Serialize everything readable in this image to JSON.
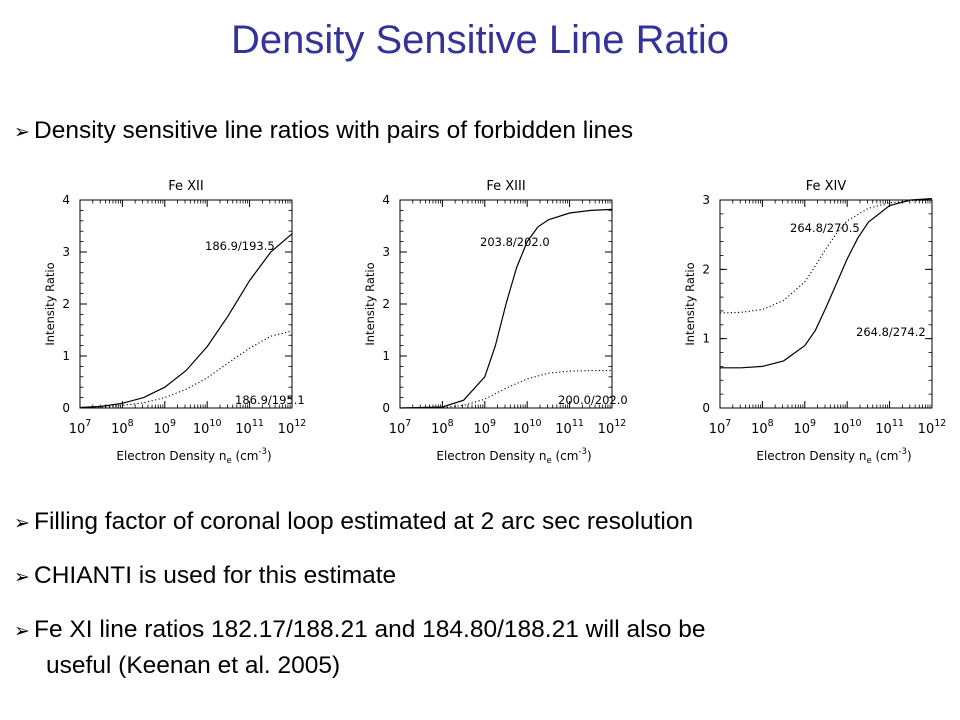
{
  "slide": {
    "title": "Density Sensitive Line Ratio",
    "bullets": [
      "Density sensitive line ratios with pairs of forbidden lines",
      "Filling factor of coronal loop estimated at 2 arc sec resolution",
      "CHIANTI is used for this estimate",
      "Fe XI line ratios 182.17/188.21 and 184.80/188.21 will also be"
    ],
    "bullet_continuation": "useful (Keenan et al. 2005)",
    "bullet_icon": "arrow-bullet-icon"
  },
  "chart_data": [
    {
      "type": "line",
      "title": "Fe XII",
      "xlabel": "Electron Density",
      "ylabel": "Intensity Ratio",
      "xscale": "log",
      "xlim": [
        7,
        12
      ],
      "ylim": [
        0,
        4
      ],
      "xticks": [
        7,
        8,
        9,
        10,
        11,
        12
      ],
      "yticks": [
        0,
        1,
        2,
        3,
        4
      ],
      "series": [
        {
          "name": "186.9/193.5",
          "style": "solid",
          "x": [
            7,
            7.5,
            8,
            8.5,
            9,
            9.5,
            10,
            10.5,
            11,
            11.5,
            12
          ],
          "y": [
            0.01,
            0.03,
            0.09,
            0.2,
            0.4,
            0.72,
            1.18,
            1.78,
            2.45,
            3.0,
            3.35
          ]
        },
        {
          "name": "186.9/195.1",
          "style": "dotted",
          "x": [
            7,
            7.5,
            8,
            8.5,
            9,
            9.5,
            10,
            10.5,
            11,
            11.5,
            12
          ],
          "y": [
            0.01,
            0.02,
            0.05,
            0.1,
            0.2,
            0.36,
            0.58,
            0.87,
            1.15,
            1.38,
            1.48
          ]
        }
      ]
    },
    {
      "type": "line",
      "title": "Fe XIII",
      "xlabel": "Electron Density",
      "ylabel": "Intensity Ratio",
      "xscale": "log",
      "xlim": [
        7,
        12
      ],
      "ylim": [
        0,
        4
      ],
      "xticks": [
        7,
        8,
        9,
        10,
        11,
        12
      ],
      "yticks": [
        0,
        1,
        2,
        3,
        4
      ],
      "series": [
        {
          "name": "203.8/202.0",
          "style": "solid",
          "x": [
            7,
            8,
            8.5,
            9,
            9.25,
            9.5,
            9.75,
            10,
            10.25,
            10.5,
            11,
            11.5,
            12
          ],
          "y": [
            0.0,
            0.02,
            0.15,
            0.6,
            1.2,
            2.0,
            2.7,
            3.2,
            3.48,
            3.62,
            3.75,
            3.8,
            3.82
          ]
        },
        {
          "name": "200.0/202.0",
          "style": "dotted",
          "x": [
            7,
            8,
            8.5,
            9,
            9.5,
            10,
            10.5,
            11,
            11.5,
            12
          ],
          "y": [
            0.0,
            0.01,
            0.05,
            0.17,
            0.38,
            0.56,
            0.67,
            0.71,
            0.72,
            0.72
          ]
        }
      ]
    },
    {
      "type": "line",
      "title": "Fe XIV",
      "xlabel": "Electron Density",
      "ylabel": "Intensity Ratio",
      "xscale": "log",
      "xlim": [
        7,
        12
      ],
      "ylim": [
        0,
        3
      ],
      "xticks": [
        7,
        8,
        9,
        10,
        11,
        12
      ],
      "yticks": [
        0,
        1,
        2,
        3
      ],
      "series": [
        {
          "name": "264.8/270.5",
          "style": "dotted",
          "x": [
            7,
            7.5,
            8,
            8.5,
            9,
            9.25,
            9.5,
            9.75,
            10,
            10.5,
            11,
            11.5,
            12
          ],
          "y": [
            1.37,
            1.38,
            1.42,
            1.55,
            1.82,
            2.05,
            2.3,
            2.52,
            2.7,
            2.88,
            2.96,
            2.99,
            3.0
          ]
        },
        {
          "name": "264.8/274.2",
          "style": "solid",
          "x": [
            7,
            7.5,
            8,
            8.5,
            9,
            9.25,
            9.5,
            9.75,
            10,
            10.25,
            10.5,
            11,
            11.5,
            12
          ],
          "y": [
            0.58,
            0.58,
            0.6,
            0.68,
            0.9,
            1.12,
            1.45,
            1.8,
            2.15,
            2.45,
            2.68,
            2.92,
            3.0,
            3.02
          ]
        }
      ]
    }
  ]
}
